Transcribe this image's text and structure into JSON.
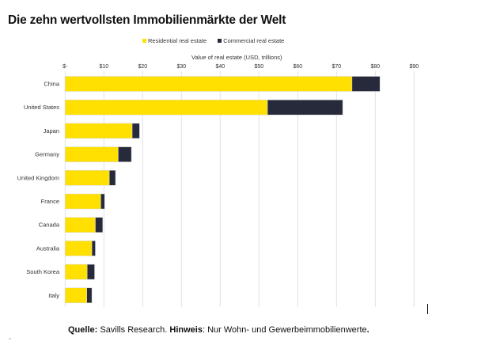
{
  "title": "Die zehn wertvollsten Immobilienmärkte der Welt",
  "footer": {
    "source_label": "Quelle:",
    "source_text": " Savills Research. ",
    "note_label": "Hinweis",
    "note_text": ": Nur Wohn- und Gewerbeimmobilienwerte",
    "end": "."
  },
  "stray_mark": "¨",
  "colors": {
    "residential": "#FFE000",
    "commercial": "#262A3B",
    "grid": "#E2E2E2",
    "text": "#333333"
  },
  "chart_data": {
    "type": "bar",
    "orientation": "horizontal",
    "stacked": true,
    "title": "Die zehn wertvollsten Immobilienmärkte der Welt",
    "xlabel": "Value of real estate (USD, trillions)",
    "ylabel": "",
    "xlim": [
      0,
      90
    ],
    "xticks": [
      0,
      10,
      20,
      30,
      40,
      50,
      60,
      70,
      80,
      90
    ],
    "xtick_labels": [
      "$-",
      "$10",
      "$20",
      "$30",
      "$40",
      "$50",
      "$60",
      "$70",
      "$80",
      "$90"
    ],
    "grid": true,
    "legend_position": "top",
    "categories": [
      "China",
      "United States",
      "Japan",
      "Germany",
      "United Kingdom",
      "France",
      "Canada",
      "Australia",
      "South Korea",
      "Italy"
    ],
    "series": [
      {
        "name": "Residential real estate",
        "color": "#FFE000",
        "values": [
          74.0,
          52.2,
          17.3,
          13.7,
          11.4,
          9.2,
          7.8,
          6.9,
          5.7,
          5.6
        ]
      },
      {
        "name": "Commercial real estate",
        "color": "#262A3B",
        "values": [
          7.2,
          19.4,
          1.9,
          3.4,
          1.6,
          1.0,
          1.9,
          0.9,
          1.9,
          1.3
        ]
      }
    ]
  }
}
